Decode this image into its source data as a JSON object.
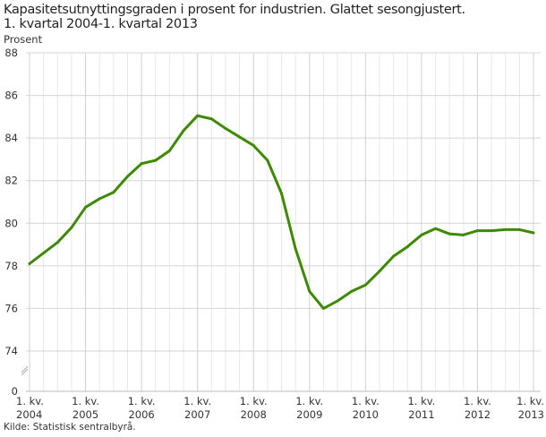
{
  "chart_data": {
    "type": "line",
    "title": "Kapasitetsutnyttingsgraden i prosent for industrien. Glattet sesongjustert. 1. kvartal 2004-1. kvartal 2013",
    "title_lines": [
      "Kapasitetsutnyttingsgraden i prosent for industrien. Glattet sesongjustert.",
      "1. kvartal 2004-1. kvartal 2013"
    ],
    "ylabel": "Prosent",
    "xlabel": "",
    "y_ticks": [
      0,
      74,
      76,
      78,
      80,
      82,
      84,
      86,
      88
    ],
    "y_axis_break": [
      0,
      74
    ],
    "ylim": [
      74,
      88
    ],
    "x_tick_labels": [
      {
        "line1": "1. kv.",
        "line2": "2004"
      },
      {
        "line1": "1. kv.",
        "line2": "2005"
      },
      {
        "line1": "1. kv.",
        "line2": "2006"
      },
      {
        "line1": "1. kv.",
        "line2": "2007"
      },
      {
        "line1": "1. kv.",
        "line2": "2008"
      },
      {
        "line1": "1. kv.",
        "line2": "2009"
      },
      {
        "line1": "1. kv.",
        "line2": "2010"
      },
      {
        "line1": "1. kv.",
        "line2": "2011"
      },
      {
        "line1": "1. kv.",
        "line2": "2012"
      },
      {
        "line1": "1. kv.",
        "line2": "2013"
      }
    ],
    "grid": true,
    "color": "#3d8a00",
    "x": [
      "2004K1",
      "2004K2",
      "2004K3",
      "2004K4",
      "2005K1",
      "2005K2",
      "2005K3",
      "2005K4",
      "2006K1",
      "2006K2",
      "2006K3",
      "2006K4",
      "2007K1",
      "2007K2",
      "2007K3",
      "2007K4",
      "2008K1",
      "2008K2",
      "2008K3",
      "2008K4",
      "2009K1",
      "2009K2",
      "2009K3",
      "2009K4",
      "2010K1",
      "2010K2",
      "2010K3",
      "2010K4",
      "2011K1",
      "2011K2",
      "2011K3",
      "2011K4",
      "2012K1",
      "2012K2",
      "2012K3",
      "2012K4",
      "2013K1"
    ],
    "values": [
      78.1,
      78.6,
      79.1,
      79.8,
      80.75,
      81.15,
      81.45,
      82.2,
      82.8,
      82.95,
      83.4,
      84.35,
      85.05,
      84.9,
      84.45,
      84.05,
      83.65,
      82.95,
      81.4,
      78.8,
      76.8,
      76.0,
      76.35,
      76.8,
      77.1,
      77.75,
      78.45,
      78.9,
      79.45,
      79.75,
      79.5,
      79.45,
      79.65,
      79.65,
      79.7,
      79.7,
      79.55
    ]
  },
  "source": "Kilde: Statistisk sentralbyrå."
}
